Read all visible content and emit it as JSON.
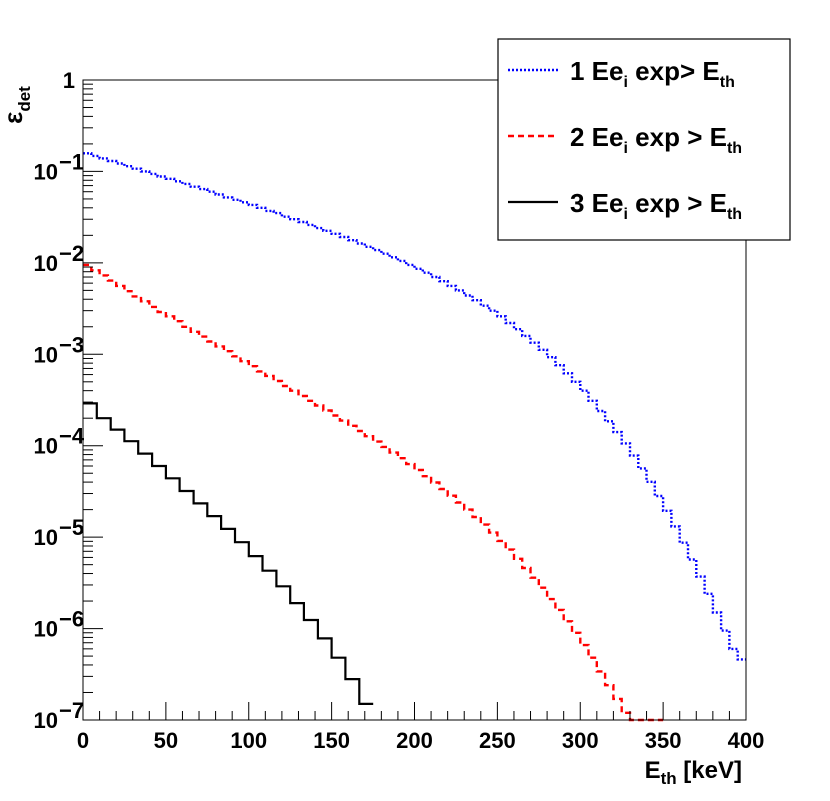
{
  "chart_data": {
    "type": "line",
    "title": "",
    "xlabel": {
      "main": "E",
      "sub": "th",
      "unit": " [keV]"
    },
    "ylabel": {
      "main": "ε",
      "sub": "det"
    },
    "xlim": [
      0,
      400
    ],
    "ylim": [
      1e-07,
      1
    ],
    "y_log": true,
    "grid": false,
    "legend_position": "top-right",
    "x_ticks": [
      "0",
      "50",
      "100",
      "150",
      "200",
      "250",
      "300",
      "350",
      "400"
    ],
    "y_ticks": [
      {
        "base": "1",
        "exp": ""
      },
      {
        "base": "10",
        "exp": "−1"
      },
      {
        "base": "10",
        "exp": "−2"
      },
      {
        "base": "10",
        "exp": "−3"
      },
      {
        "base": "10",
        "exp": "−4"
      },
      {
        "base": "10",
        "exp": "−5"
      },
      {
        "base": "10",
        "exp": "−6"
      },
      {
        "base": "10",
        "exp": "−7"
      }
    ],
    "series": [
      {
        "name": "1 Ee_i exp> E_th",
        "legend": {
          "prefix": "1 Ee",
          "sub1": "i",
          "mid": " exp> E",
          "sub2": "th"
        },
        "color": "#0000ff",
        "style": "dotted",
        "step": true,
        "x": [
          0,
          5,
          10,
          15,
          20,
          25,
          30,
          35,
          40,
          45,
          50,
          55,
          60,
          65,
          70,
          75,
          80,
          85,
          90,
          95,
          100,
          105,
          110,
          115,
          120,
          125,
          130,
          135,
          140,
          145,
          150,
          155,
          160,
          165,
          170,
          175,
          180,
          185,
          190,
          195,
          200,
          205,
          210,
          215,
          220,
          225,
          230,
          235,
          240,
          245,
          250,
          255,
          260,
          265,
          270,
          275,
          280,
          285,
          290,
          295,
          300,
          305,
          310,
          315,
          320,
          325,
          330,
          335,
          340,
          345,
          350,
          355,
          360,
          365,
          370,
          375,
          380,
          385,
          390,
          395,
          400
        ],
        "y": [
          0.158,
          0.148,
          0.139,
          0.13,
          0.122,
          0.114,
          0.107,
          0.1,
          0.094,
          0.088,
          0.083,
          0.078,
          0.073,
          0.068,
          0.064,
          0.06,
          0.056,
          0.052,
          0.049,
          0.046,
          0.043,
          0.04,
          0.037,
          0.035,
          0.032,
          0.03,
          0.028,
          0.026,
          0.024,
          0.0224,
          0.0208,
          0.0192,
          0.0177,
          0.0163,
          0.015,
          0.0138,
          0.0126,
          0.0115,
          0.0105,
          0.0095,
          0.0086,
          0.0078,
          0.007,
          0.0063,
          0.0056,
          0.005,
          0.0044,
          0.0039,
          0.0034,
          0.003,
          0.0026,
          0.0022,
          0.00188,
          0.00159,
          0.00134,
          0.00112,
          0.00093,
          0.00076,
          0.00062,
          0.0005,
          0.0004,
          0.00031,
          0.00024,
          0.000185,
          0.000141,
          0.000106,
          7.8e-05,
          5.65e-05,
          4.03e-05,
          2.82e-05,
          1.94e-05,
          1.31e-05,
          8.7e-06,
          5.7e-06,
          3.7e-06,
          2.4e-06,
          1.5e-06,
          9.5e-07,
          6e-07,
          4.6e-07,
          4.6e-07
        ]
      },
      {
        "name": "2 Ee_i exp > E_th",
        "legend": {
          "prefix": "2 Ee",
          "sub1": "i",
          "mid": " exp > E",
          "sub2": "th"
        },
        "color": "#ff0000",
        "style": "dashed",
        "step": true,
        "x": [
          0,
          5,
          10,
          15,
          20,
          25,
          30,
          35,
          40,
          45,
          50,
          55,
          60,
          65,
          70,
          75,
          80,
          85,
          90,
          95,
          100,
          105,
          110,
          115,
          120,
          125,
          130,
          135,
          140,
          145,
          150,
          155,
          160,
          165,
          170,
          175,
          180,
          185,
          190,
          195,
          200,
          205,
          210,
          215,
          220,
          225,
          230,
          235,
          240,
          245,
          250,
          255,
          260,
          265,
          270,
          275,
          280,
          285,
          290,
          295,
          300,
          305,
          310,
          315,
          320,
          325,
          330,
          335,
          340,
          345
        ],
        "y": [
          0.0095,
          0.0083,
          0.0073,
          0.0064,
          0.0056,
          0.0049,
          0.0043,
          0.0038,
          0.0033,
          0.0029,
          0.0026,
          0.0023,
          0.002,
          0.00176,
          0.00156,
          0.00138,
          0.00122,
          0.00108,
          0.00095,
          0.00084,
          0.00074,
          0.00065,
          0.00058,
          0.00051,
          0.00045,
          0.0004,
          0.00035,
          0.00031,
          0.000275,
          0.000243,
          0.000214,
          0.000188,
          0.000165,
          0.000145,
          0.000127,
          0.000111,
          9.7e-05,
          8.4e-05,
          7.3e-05,
          6.3e-05,
          5.42e-05,
          4.64e-05,
          3.96e-05,
          3.36e-05,
          2.84e-05,
          2.39e-05,
          2e-05,
          1.66e-05,
          1.37e-05,
          1.12e-05,
          9.1e-06,
          7.3e-06,
          5.8e-06,
          4.6e-06,
          3.6e-06,
          2.8e-06,
          2.1e-06,
          1.6e-06,
          1.2e-06,
          9e-07,
          6.6e-07,
          4.8e-07,
          3.4e-07,
          2.4e-07,
          1.7e-07,
          1.2e-07,
          1e-07,
          1e-07,
          1e-07,
          1e-07
        ]
      },
      {
        "name": "3 Ee_i exp > E_th",
        "legend": {
          "prefix": "3 Ee",
          "sub1": "i",
          "mid": " exp > E",
          "sub2": "th"
        },
        "color": "#000000",
        "style": "solid",
        "step": true,
        "x": [
          0,
          8.3,
          16.7,
          25,
          33.3,
          41.7,
          50,
          58.3,
          66.7,
          75,
          83.3,
          91.7,
          100,
          108.3,
          116.7,
          125,
          133.3,
          141.7,
          150,
          158.3,
          166.7
        ],
        "y": [
          0.00029,
          0.0002,
          0.00015,
          0.000112,
          8.2e-05,
          6e-05,
          4.4e-05,
          3.2e-05,
          2.34e-05,
          1.7e-05,
          1.23e-05,
          8.8e-06,
          6.2e-06,
          4.3e-06,
          2.9e-06,
          1.9e-06,
          1.24e-06,
          7.8e-07,
          4.8e-07,
          2.8e-07,
          1.5e-07
        ]
      }
    ]
  }
}
